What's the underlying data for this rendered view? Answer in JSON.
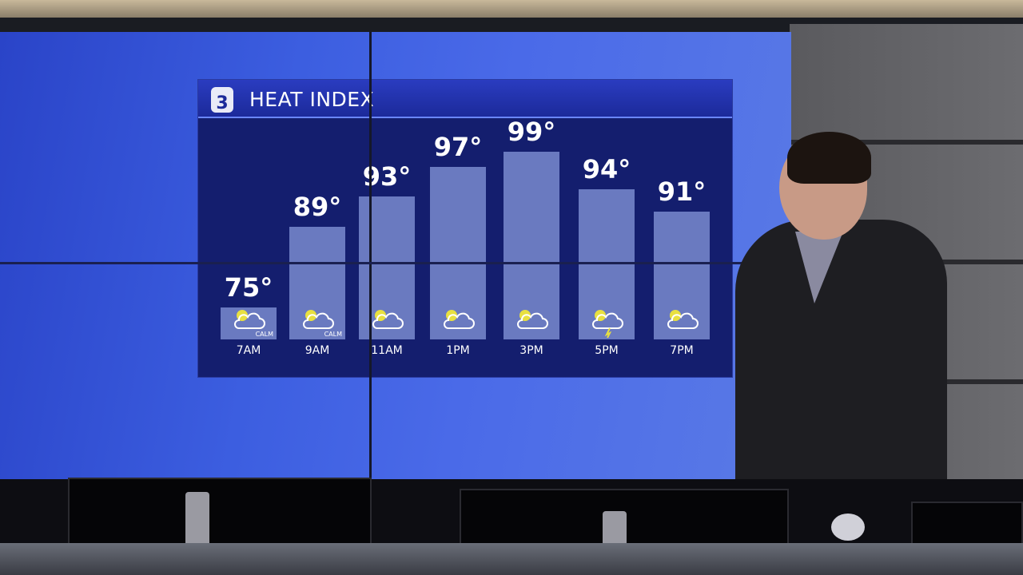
{
  "broadcast": {
    "logo_text": "3",
    "title": "HEAT INDEX"
  },
  "colors": {
    "panel": "#141e6e",
    "header": "#2a3cc0",
    "bar": "#6a7ac0",
    "sun": "#e8e040"
  },
  "chart_data": {
    "type": "bar",
    "title": "HEAT INDEX",
    "categories": [
      "7AM",
      "9AM",
      "11AM",
      "1PM",
      "3PM",
      "5PM",
      "7PM"
    ],
    "values": [
      75,
      89,
      93,
      97,
      99,
      94,
      91
    ],
    "value_labels": [
      "75°",
      "89°",
      "93°",
      "97°",
      "99°",
      "94°",
      "91°"
    ],
    "icons": [
      "partly-cloudy-icon",
      "mostly-sunny-icon",
      "partly-cloudy-icon",
      "partly-cloudy-icon",
      "mostly-cloudy-icon",
      "thunderstorm-icon",
      "mostly-cloudy-icon"
    ],
    "wind": [
      "CALM",
      "CALM",
      "",
      "",
      "",
      "",
      ""
    ],
    "xlabel": "",
    "ylabel": "",
    "grid": false
  }
}
